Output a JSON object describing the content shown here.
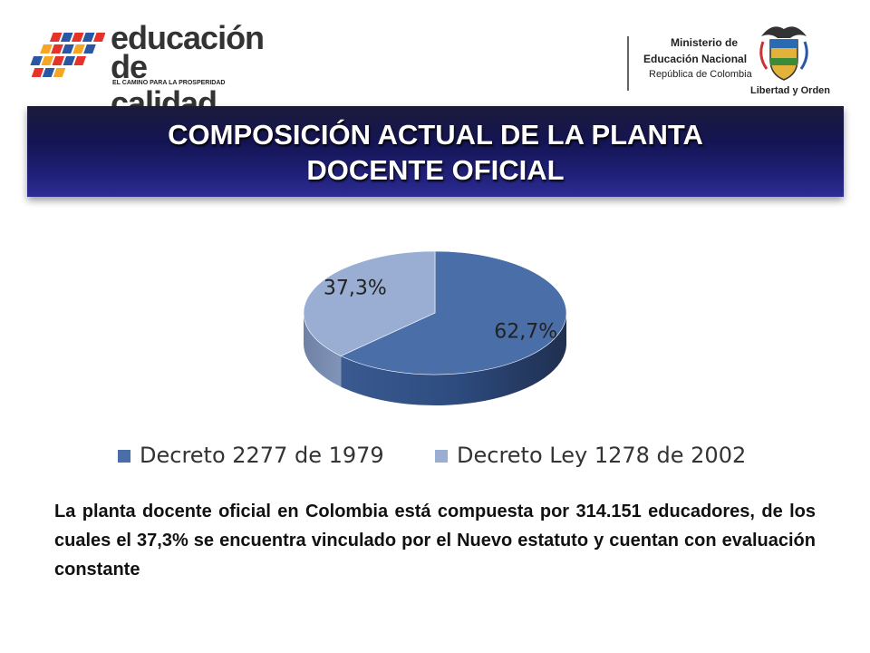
{
  "logo": {
    "line1": "educación",
    "line2": "de calidad",
    "tagline": "EL CAMINO PARA LA PROSPERIDAD"
  },
  "ministry": {
    "line1": "Ministerio de",
    "line2": "Educación Nacional",
    "line3": "República de Colombia",
    "motto": "Libertad y Orden"
  },
  "title": {
    "line1": "COMPOSICIÓN ACTUAL DE LA PLANTA",
    "line2": "DOCENTE OFICIAL"
  },
  "chart_data": {
    "type": "pie",
    "categories": [
      "Decreto 2277 de 1979",
      "Decreto Ley 1278 de 2002"
    ],
    "values": [
      62.7,
      37.3
    ],
    "data_labels": [
      "62,7%",
      "37,3%"
    ],
    "colors": [
      "#4a6ea8",
      "#9aaed3"
    ],
    "legend_position": "bottom",
    "style": "3d"
  },
  "caption": "La planta docente oficial en Colombia está compuesta por 314.151 educadores, de los cuales el 37,3% se encuentra vinculado por el Nuevo estatuto y cuentan con evaluación constante",
  "colors": {
    "title_band": "#141454",
    "series1": "#4a6ea8",
    "series2": "#9aaed3"
  }
}
